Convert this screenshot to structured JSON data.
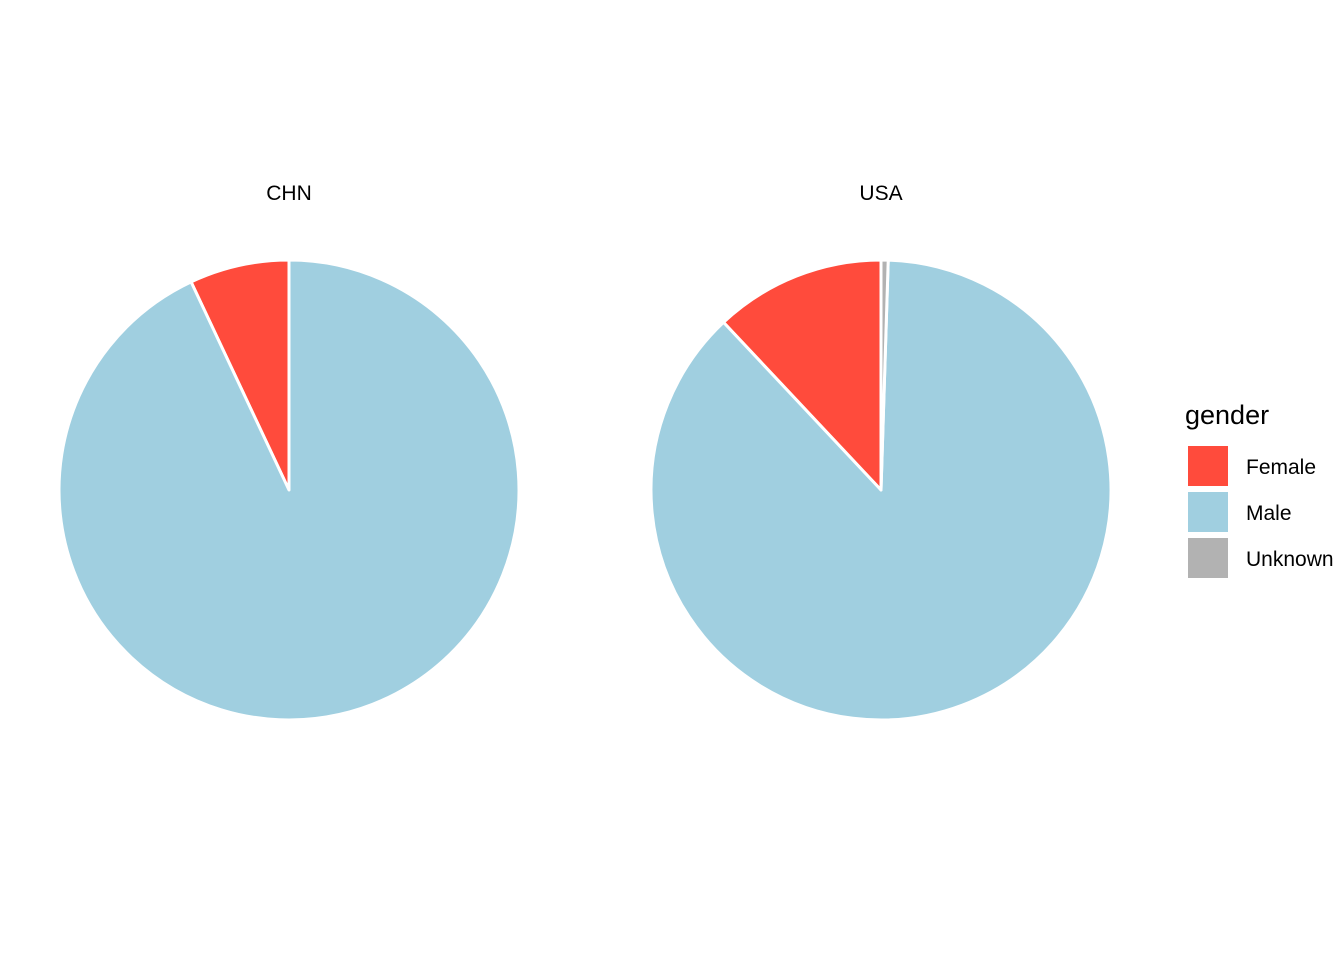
{
  "chart_data": {
    "type": "pie",
    "legend": {
      "title": "gender",
      "position": "right",
      "entries": [
        {
          "label": "Female",
          "color": "#FF4B3C"
        },
        {
          "label": "Male",
          "color": "#A0CFE0"
        },
        {
          "label": "Unknown",
          "color": "#B2B2B2"
        }
      ]
    },
    "facets": [
      {
        "label": "CHN",
        "slices": [
          {
            "category": "Female",
            "value": 0.07
          },
          {
            "category": "Male",
            "value": 0.93
          }
        ]
      },
      {
        "label": "USA",
        "slices": [
          {
            "category": "Female",
            "value": 0.12
          },
          {
            "category": "Male",
            "value": 0.875
          },
          {
            "category": "Unknown",
            "value": 0.005
          }
        ]
      }
    ]
  }
}
